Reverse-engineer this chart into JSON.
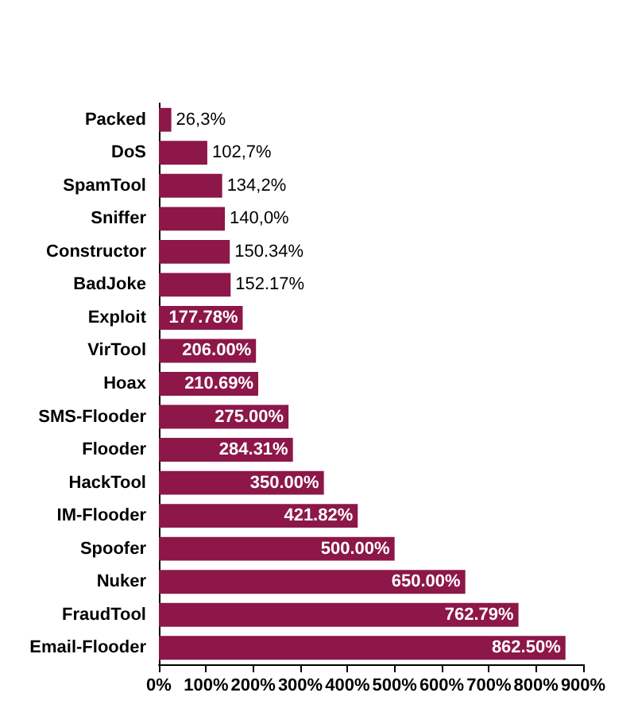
{
  "chart_data": {
    "type": "bar",
    "orientation": "horizontal",
    "categories": [
      "Packed",
      "DoS",
      "SpamTool",
      "Sniffer",
      "Constructor",
      "BadJoke",
      "Exploit",
      "VirTool",
      "Hoax",
      "SMS-Flooder",
      "Flooder",
      "HackTool",
      "IM-Flooder",
      "Spoofer",
      "Nuker",
      "FraudTool",
      "Email-Flooder"
    ],
    "values": [
      26.3,
      102.7,
      134.2,
      140.0,
      150.34,
      152.17,
      177.78,
      206.0,
      210.69,
      275.0,
      284.31,
      350.0,
      421.82,
      500.0,
      650.0,
      762.79,
      862.5
    ],
    "value_labels": [
      "26,3%",
      "102,7%",
      "134,2%",
      "140,0%",
      "150.34%",
      "152.17%",
      "177.78%",
      "206.00%",
      "210.69%",
      "275.00%",
      "284.31%",
      "350.00%",
      "421.82%",
      "500.00%",
      "650.00%",
      "762.79%",
      "862.50%"
    ],
    "color": "#8c1748",
    "xlim": [
      0,
      900
    ],
    "xticks": [
      {
        "value": 0,
        "label": "0%"
      },
      {
        "value": 100,
        "label": "100%"
      },
      {
        "value": 200,
        "label": "200%"
      },
      {
        "value": 300,
        "label": "300%"
      },
      {
        "value": 400,
        "label": "400%"
      },
      {
        "value": 500,
        "label": "500%"
      },
      {
        "value": 600,
        "label": "600%"
      },
      {
        "value": 700,
        "label": "700%"
      },
      {
        "value": 800,
        "label": "800%"
      },
      {
        "value": 900,
        "label": "900%"
      }
    ],
    "grid": false
  }
}
